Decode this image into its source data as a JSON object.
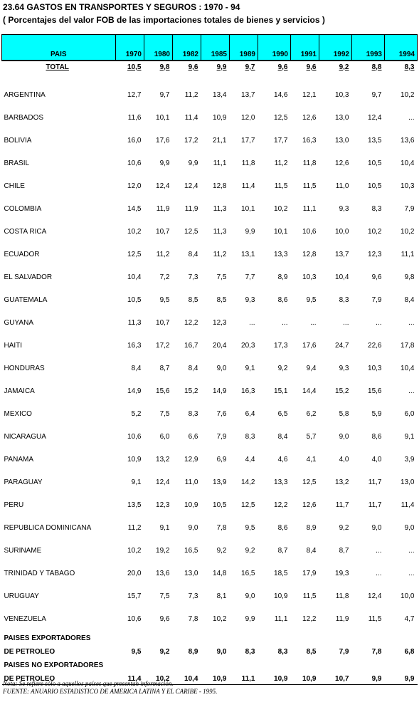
{
  "title": "23.64   GASTOS EN TRANSPORTES Y SEGUROS : 1970 - 94",
  "subtitle": "( Porcentajes del valor FOB de las importaciones totales de bienes y servicios )",
  "table": {
    "header": {
      "country_label": "PAIS",
      "years": [
        "1970",
        "1980",
        "1982",
        "1985",
        "1989",
        "1990",
        "1991",
        "1992",
        "1993",
        "1994"
      ]
    },
    "total": {
      "label": "TOTAL",
      "values": [
        "10,5",
        "9,8",
        "9,6",
        "9,9",
        "9,7",
        "9,6",
        "9,6",
        "9,2",
        "8,8",
        "8,3"
      ]
    },
    "rows": [
      {
        "country": "ARGENTINA",
        "values": [
          "12,7",
          "9,7",
          "11,2",
          "13,4",
          "13,7",
          "14,6",
          "12,1",
          "10,3",
          "9,7",
          "10,2"
        ]
      },
      {
        "country": "BARBADOS",
        "values": [
          "11,6",
          "10,1",
          "11,4",
          "10,9",
          "12,0",
          "12,5",
          "12,6",
          "13,0",
          "12,4",
          "..."
        ]
      },
      {
        "country": "BOLIVIA",
        "values": [
          "16,0",
          "17,6",
          "17,2",
          "21,1",
          "17,7",
          "17,7",
          "16,3",
          "13,0",
          "13,5",
          "13,6"
        ]
      },
      {
        "country": "BRASIL",
        "values": [
          "10,6",
          "9,9",
          "9,9",
          "11,1",
          "11,8",
          "11,2",
          "11,8",
          "12,6",
          "10,5",
          "10,4"
        ]
      },
      {
        "country": "CHILE",
        "values": [
          "12,0",
          "12,4",
          "12,4",
          "12,8",
          "11,4",
          "11,5",
          "11,5",
          "11,0",
          "10,5",
          "10,3"
        ]
      },
      {
        "country": "COLOMBIA",
        "values": [
          "14,5",
          "11,9",
          "11,9",
          "11,3",
          "10,1",
          "10,2",
          "11,1",
          "9,3",
          "8,3",
          "7,9"
        ]
      },
      {
        "country": "COSTA RICA",
        "values": [
          "10,2",
          "10,7",
          "12,5",
          "11,3",
          "9,9",
          "10,1",
          "10,6",
          "10,0",
          "10,2",
          "10,2"
        ]
      },
      {
        "country": "ECUADOR",
        "values": [
          "12,5",
          "11,2",
          "8,4",
          "11,2",
          "13,1",
          "13,3",
          "12,8",
          "13,7",
          "12,3",
          "11,1"
        ]
      },
      {
        "country": "EL SALVADOR",
        "values": [
          "10,4",
          "7,2",
          "7,3",
          "7,5",
          "7,7",
          "8,9",
          "10,3",
          "10,4",
          "9,6",
          "9,8"
        ]
      },
      {
        "country": "GUATEMALA",
        "values": [
          "10,5",
          "9,5",
          "8,5",
          "8,5",
          "9,3",
          "8,6",
          "9,5",
          "8,3",
          "7,9",
          "8,4"
        ]
      },
      {
        "country": "GUYANA",
        "values": [
          "11,3",
          "10,7",
          "12,2",
          "12,3",
          "...",
          "...",
          "...",
          "...",
          "...",
          "..."
        ]
      },
      {
        "country": "HAITI",
        "values": [
          "16,3",
          "17,2",
          "16,7",
          "20,4",
          "20,3",
          "17,3",
          "17,6",
          "24,7",
          "22,6",
          "17,8"
        ]
      },
      {
        "country": "HONDURAS",
        "values": [
          "8,4",
          "8,7",
          "8,4",
          "9,0",
          "9,1",
          "9,2",
          "9,4",
          "9,3",
          "10,3",
          "10,4"
        ]
      },
      {
        "country": "JAMAICA",
        "values": [
          "14,9",
          "15,6",
          "15,2",
          "14,9",
          "16,3",
          "15,1",
          "14,4",
          "15,2",
          "15,6",
          "..."
        ]
      },
      {
        "country": "MEXICO",
        "values": [
          "5,2",
          "7,5",
          "8,3",
          "7,6",
          "6,4",
          "6,5",
          "6,2",
          "5,8",
          "5,9",
          "6,0"
        ]
      },
      {
        "country": "NICARAGUA",
        "values": [
          "10,6",
          "6,0",
          "6,6",
          "7,9",
          "8,3",
          "8,4",
          "5,7",
          "9,0",
          "8,6",
          "9,1"
        ]
      },
      {
        "country": "PANAMA",
        "values": [
          "10,9",
          "13,2",
          "12,9",
          "6,9",
          "4,4",
          "4,6",
          "4,1",
          "4,0",
          "4,0",
          "3,9"
        ]
      },
      {
        "country": "PARAGUAY",
        "values": [
          "9,1",
          "12,4",
          "11,0",
          "13,9",
          "14,2",
          "13,3",
          "12,5",
          "13,2",
          "11,7",
          "13,0"
        ]
      },
      {
        "country": "PERU",
        "values": [
          "13,5",
          "12,3",
          "10,9",
          "10,5",
          "12,5",
          "12,2",
          "12,6",
          "11,7",
          "11,7",
          "11,4"
        ]
      },
      {
        "country": "REPUBLICA DOMINICANA",
        "values": [
          "11,2",
          "9,1",
          "9,0",
          "7,8",
          "9,5",
          "8,6",
          "8,9",
          "9,2",
          "9,0",
          "9,0"
        ]
      },
      {
        "country": "SURINAME",
        "values": [
          "10,2",
          "19,2",
          "16,5",
          "9,2",
          "9,2",
          "8,7",
          "8,4",
          "8,7",
          "...",
          "..."
        ]
      },
      {
        "country": "TRINIDAD Y TABAGO",
        "values": [
          "20,0",
          "13,6",
          "13,0",
          "14,8",
          "16,5",
          "18,5",
          "17,9",
          "19,3",
          "...",
          "..."
        ]
      },
      {
        "country": "URUGUAY",
        "values": [
          "15,7",
          "7,5",
          "7,3",
          "8,1",
          "9,0",
          "10,9",
          "11,5",
          "11,8",
          "12,4",
          "10,0"
        ]
      },
      {
        "country": "VENEZUELA",
        "values": [
          "10,6",
          "9,6",
          "7,8",
          "10,2",
          "9,9",
          "11,1",
          "12,2",
          "11,9",
          "11,5",
          "4,7"
        ]
      }
    ],
    "groups": [
      {
        "label_line1": "PAISES EXPORTADORES",
        "label_line2": "DE PETROLEO",
        "values": [
          "9,5",
          "9,2",
          "8,9",
          "9,0",
          "8,3",
          "8,3",
          "8,5",
          "7,9",
          "7,8",
          "6,8"
        ]
      },
      {
        "label_line1": "PAISES NO EXPORTADORES",
        "label_line2": "DE PETROLEO",
        "values": [
          "11,4",
          "10,2",
          "10,4",
          "10,9",
          "11,1",
          "10,9",
          "10,9",
          "10,7",
          "9,9",
          "9,9"
        ]
      }
    ]
  },
  "note": "Nota: Se refiere sólo a aquellos países que presentan información.",
  "source": "FUENTE: ANUARIO ESTADISTICO DE AMERICA LATINA Y EL CARIBE - 1995."
}
